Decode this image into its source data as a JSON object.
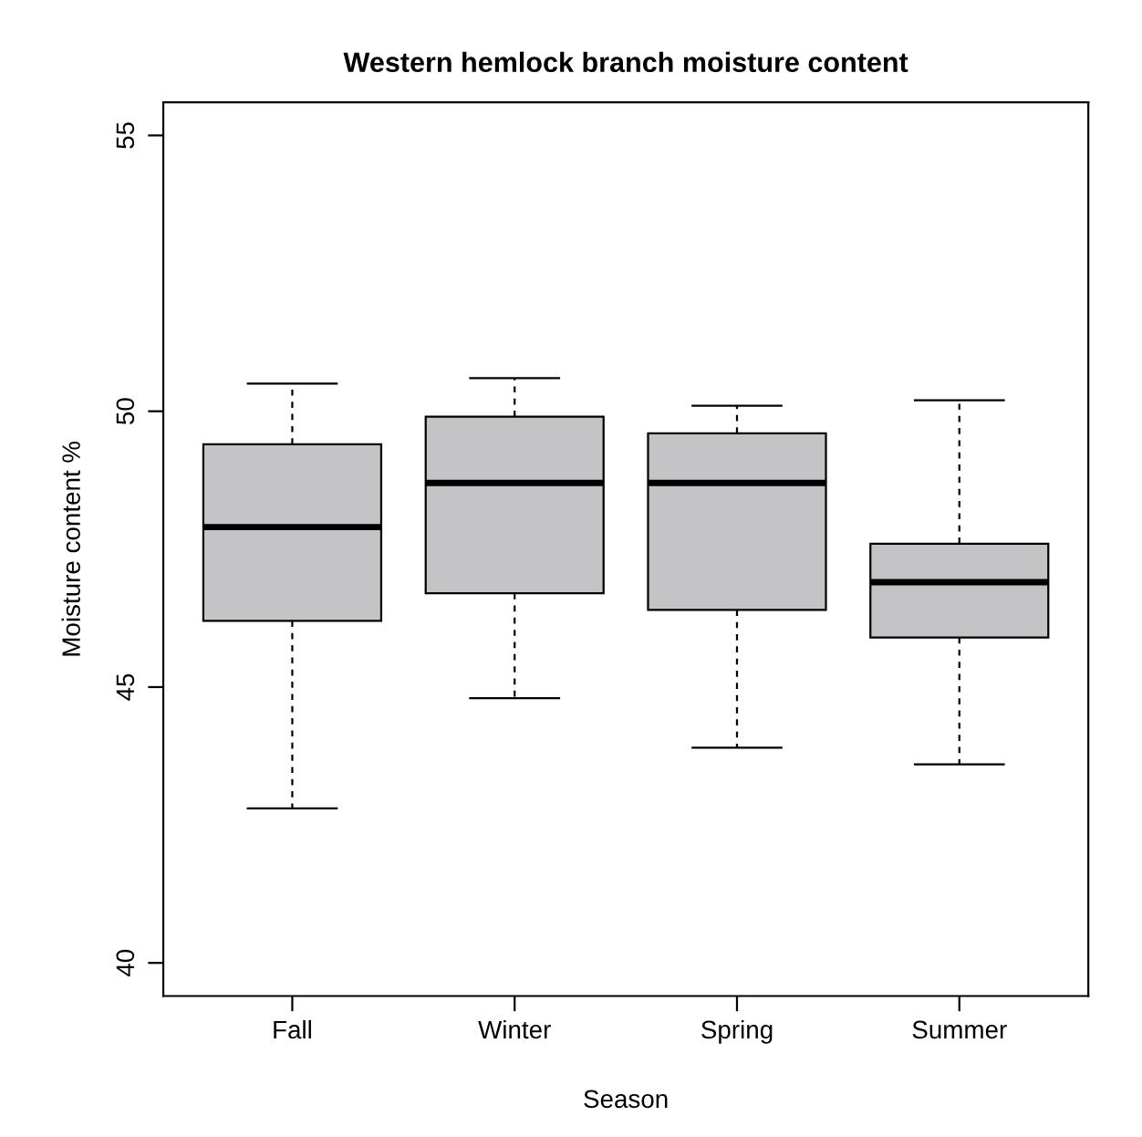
{
  "chart_data": {
    "type": "box",
    "title": "Western hemlock branch moisture content",
    "xlabel": "Season",
    "ylabel": "Moisture content %",
    "categories": [
      "Fall",
      "Winter",
      "Spring",
      "Summer"
    ],
    "boxes": [
      {
        "low": 42.8,
        "q1": 46.2,
        "median": 47.9,
        "q3": 49.4,
        "high": 50.5
      },
      {
        "low": 44.8,
        "q1": 46.7,
        "median": 48.7,
        "q3": 49.9,
        "high": 50.6
      },
      {
        "low": 43.9,
        "q1": 46.4,
        "median": 48.7,
        "q3": 49.6,
        "high": 50.1
      },
      {
        "low": 43.6,
        "q1": 45.9,
        "median": 46.9,
        "q3": 47.6,
        "high": 50.2
      }
    ],
    "color": "#c4c4c6",
    "ylim": [
      39.4,
      55.6
    ],
    "yticks": [
      40,
      45,
      50,
      55
    ],
    "grid": false
  }
}
